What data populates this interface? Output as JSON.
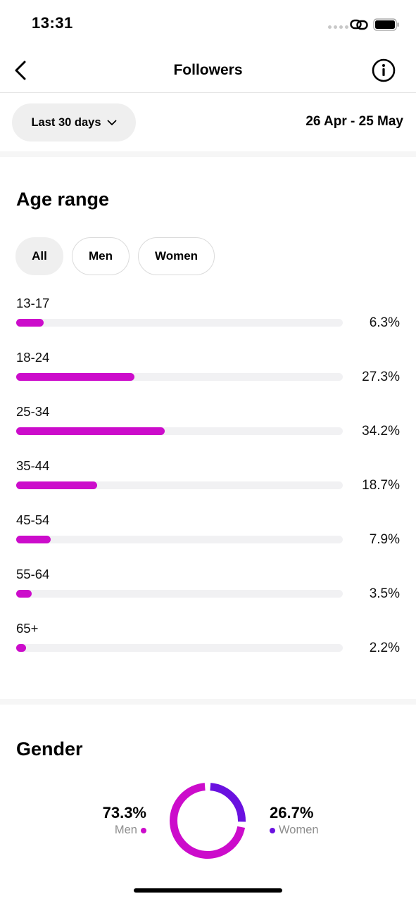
{
  "status_bar": {
    "time": "13:31"
  },
  "header": {
    "title": "Followers"
  },
  "filter": {
    "range_label": "Last 30 days",
    "date_range": "26 Apr - 25 May"
  },
  "age_section": {
    "title": "Age range",
    "tabs": [
      {
        "label": "All",
        "active": true
      },
      {
        "label": "Men",
        "active": false
      },
      {
        "label": "Women",
        "active": false
      }
    ],
    "rows": [
      {
        "label": "13-17",
        "value": "6.3%",
        "fraction": 0.063
      },
      {
        "label": "18-24",
        "value": "27.3%",
        "fraction": 0.273
      },
      {
        "label": "25-34",
        "value": "34.2%",
        "fraction": 0.342
      },
      {
        "label": "35-44",
        "value": "18.7%",
        "fraction": 0.187
      },
      {
        "label": "45-54",
        "value": "7.9%",
        "fraction": 0.079
      },
      {
        "label": "55-64",
        "value": "3.5%",
        "fraction": 0.035
      },
      {
        "label": "65+",
        "value": "2.2%",
        "fraction": 0.022
      }
    ],
    "bar_color": "#cc0ccb"
  },
  "gender_section": {
    "title": "Gender",
    "men": {
      "pct": "73.3%",
      "label": "Men",
      "fraction": 0.733,
      "color": "#cc0ccb"
    },
    "women": {
      "pct": "26.7%",
      "label": "Women",
      "fraction": 0.267,
      "color": "#6a11e0"
    }
  }
}
